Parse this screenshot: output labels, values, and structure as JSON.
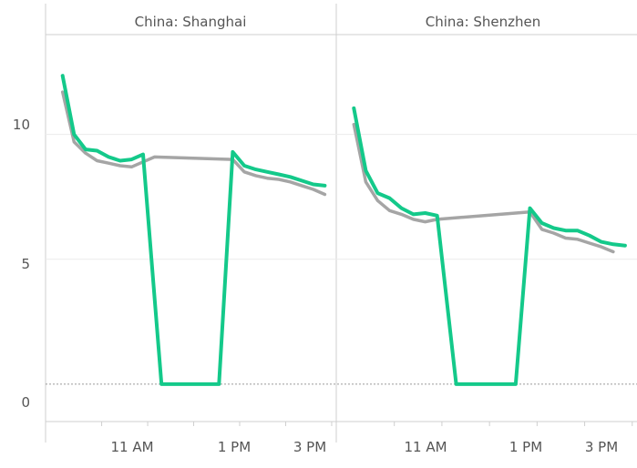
{
  "chart_data": {
    "type": "line",
    "ylim": [
      -1.5,
      14
    ],
    "y_ticks": [
      "0",
      "5",
      "10"
    ],
    "grid": true,
    "colors": {
      "series_green": "#14c98a",
      "series_gray": "#a5a5a5",
      "axis": "#cfcfcf",
      "zero_line": "#9a9a9a"
    },
    "panels": [
      {
        "title": "China: Shanghai",
        "x_tick_labels": [
          "11 AM",
          "1 PM",
          "3 PM"
        ],
        "series": [
          {
            "key": "gray",
            "points": [
              [
                9.15,
                11.7
              ],
              [
                9.4,
                9.7
              ],
              [
                9.65,
                9.25
              ],
              [
                9.9,
                8.95
              ],
              [
                10.15,
                8.85
              ],
              [
                10.4,
                8.75
              ],
              [
                10.65,
                8.7
              ],
              [
                10.9,
                8.9
              ],
              [
                11.15,
                9.1
              ],
              [
                12.85,
                9.0
              ],
              [
                13.1,
                8.5
              ],
              [
                13.35,
                8.35
              ],
              [
                13.6,
                8.25
              ],
              [
                13.85,
                8.2
              ],
              [
                14.1,
                8.1
              ],
              [
                14.35,
                7.95
              ],
              [
                14.6,
                7.8
              ],
              [
                14.85,
                7.6
              ]
            ]
          },
          {
            "key": "green",
            "points": [
              [
                9.15,
                12.35
              ],
              [
                9.4,
                10.0
              ],
              [
                9.65,
                9.4
              ],
              [
                9.9,
                9.35
              ],
              [
                10.15,
                9.1
              ],
              [
                10.4,
                8.95
              ],
              [
                10.65,
                9.0
              ],
              [
                10.9,
                9.2
              ],
              [
                11.3,
                0
              ],
              [
                12.55,
                0
              ],
              [
                12.85,
                9.3
              ],
              [
                13.1,
                8.75
              ],
              [
                13.35,
                8.6
              ],
              [
                13.6,
                8.5
              ],
              [
                13.85,
                8.4
              ],
              [
                14.1,
                8.3
              ],
              [
                14.35,
                8.15
              ],
              [
                14.6,
                8.0
              ],
              [
                14.85,
                7.95
              ]
            ]
          }
        ]
      },
      {
        "title": "China: Shenzhen",
        "x_tick_labels": [
          "11 AM",
          "1 PM",
          "3 PM"
        ],
        "series": [
          {
            "key": "gray",
            "points": [
              [
                9.15,
                10.4
              ],
              [
                9.4,
                8.1
              ],
              [
                9.65,
                7.35
              ],
              [
                9.9,
                6.95
              ],
              [
                10.15,
                6.8
              ],
              [
                10.4,
                6.6
              ],
              [
                10.65,
                6.5
              ],
              [
                10.9,
                6.6
              ],
              [
                12.85,
                6.9
              ],
              [
                13.1,
                6.2
              ],
              [
                13.35,
                6.05
              ],
              [
                13.6,
                5.85
              ],
              [
                13.85,
                5.8
              ],
              [
                14.1,
                5.65
              ],
              [
                14.35,
                5.5
              ],
              [
                14.6,
                5.3
              ]
            ]
          },
          {
            "key": "green",
            "points": [
              [
                9.15,
                11.05
              ],
              [
                9.4,
                8.55
              ],
              [
                9.65,
                7.65
              ],
              [
                9.9,
                7.45
              ],
              [
                10.15,
                7.05
              ],
              [
                10.4,
                6.8
              ],
              [
                10.65,
                6.85
              ],
              [
                10.9,
                6.75
              ],
              [
                11.3,
                0
              ],
              [
                12.55,
                0
              ],
              [
                12.85,
                7.05
              ],
              [
                13.1,
                6.45
              ],
              [
                13.35,
                6.25
              ],
              [
                13.6,
                6.15
              ],
              [
                13.85,
                6.15
              ],
              [
                14.1,
                5.95
              ],
              [
                14.35,
                5.7
              ],
              [
                14.6,
                5.6
              ],
              [
                14.85,
                5.55
              ]
            ]
          }
        ]
      }
    ]
  }
}
